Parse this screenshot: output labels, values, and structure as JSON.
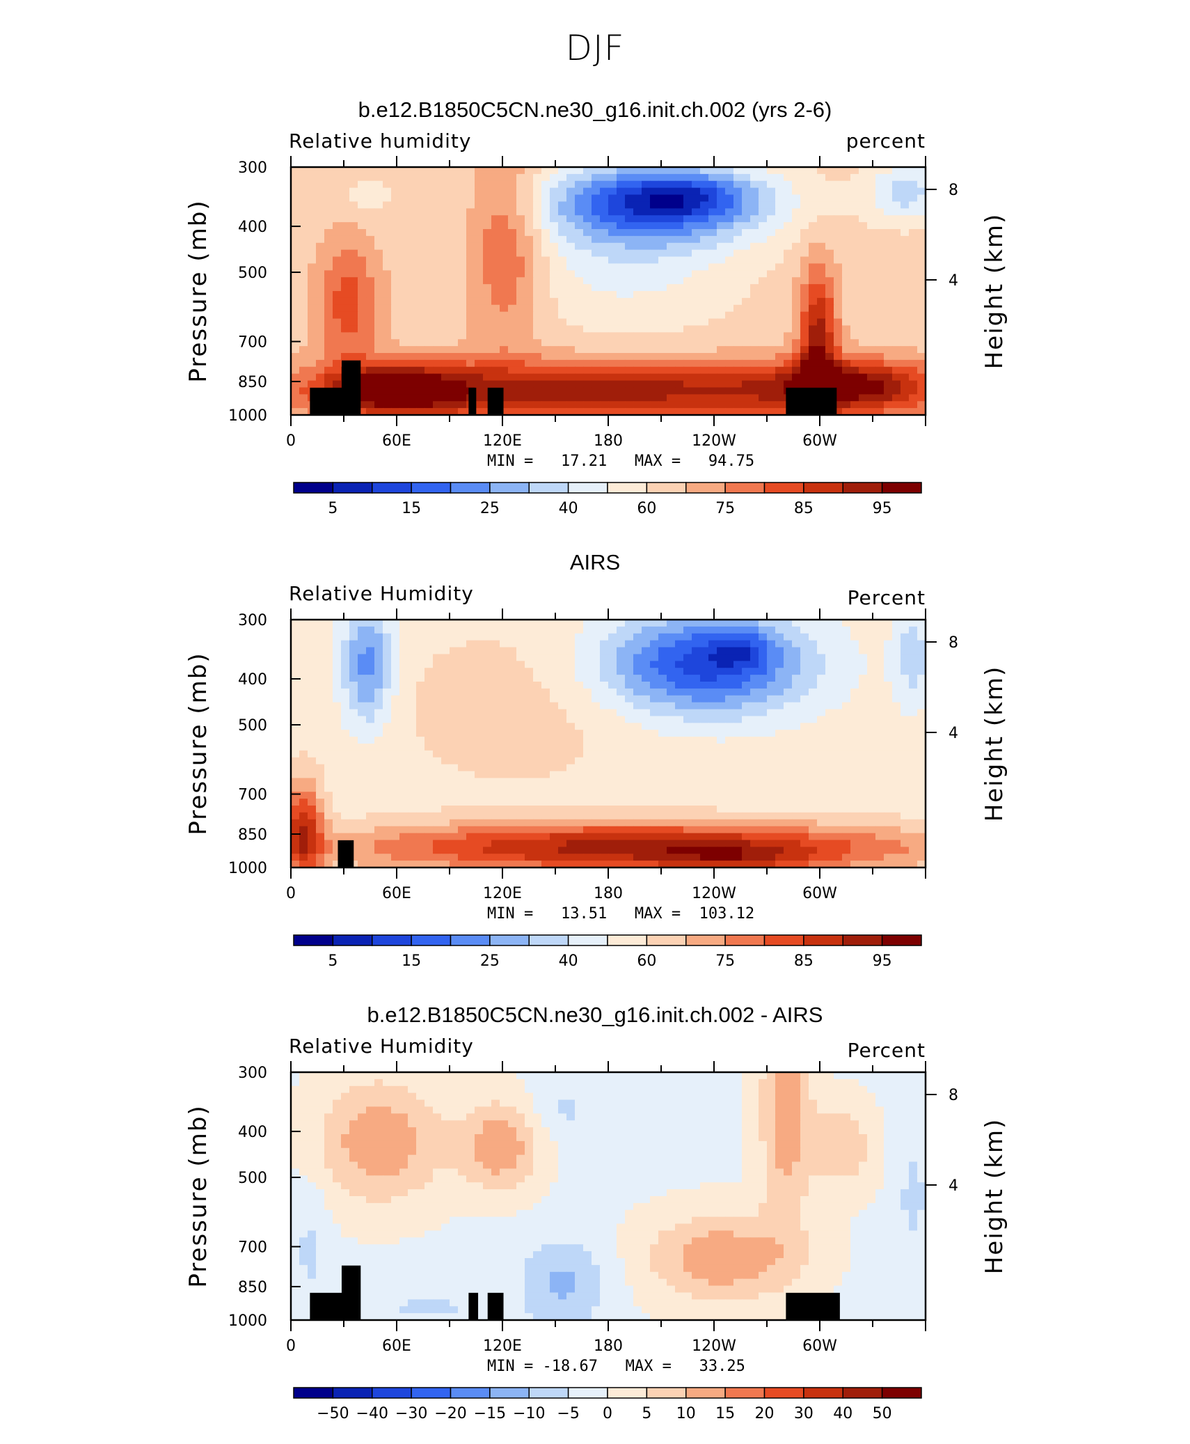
{
  "title": "DJF",
  "panels": [
    {
      "title": "b.e12.B1850C5CN.ne30_g16.init.ch.002 (yrs 2-6)",
      "var_label": "Relative humidity",
      "unit_label": "percent",
      "stats": "MIN =   17.21   MAX =   94.75",
      "colorbar_labels": [
        "5",
        "15",
        "25",
        "40",
        "60",
        "75",
        "85",
        "95"
      ]
    },
    {
      "title": "AIRS",
      "var_label": "Relative Humidity",
      "unit_label": "Percent",
      "stats": "MIN =   13.51   MAX =  103.12",
      "colorbar_labels": [
        "5",
        "15",
        "25",
        "40",
        "60",
        "75",
        "85",
        "95"
      ]
    },
    {
      "title": "b.e12.B1850C5CN.ne30_g16.init.ch.002 - AIRS",
      "var_label": "Relative Humidity",
      "unit_label": "Percent",
      "stats": "MIN = -18.67   MAX =   33.25",
      "colorbar_labels": [
        "-50",
        "-40",
        "-30",
        "-20",
        "-15",
        "-10",
        "-5",
        "0",
        "5",
        "10",
        "15",
        "20",
        "30",
        "40",
        "50"
      ]
    }
  ],
  "chart_data": [
    {
      "type": "heatmap",
      "title": "b.e12.B1850C5CN.ne30_g16.init.ch.002 (yrs 2-6)",
      "xlabel": "",
      "ylabel": "Pressure (mb)",
      "ylabel_right": "Height (km)",
      "x_ticks": [
        "0",
        "60E",
        "120E",
        "180",
        "120W",
        "60W"
      ],
      "y_ticks": [
        "300",
        "400",
        "500",
        "700",
        "850",
        "1000"
      ],
      "y_right_ticks": [
        "8",
        "4"
      ],
      "colorbar": [
        "5",
        "15",
        "25",
        "40",
        "60",
        "75",
        "85",
        "95"
      ],
      "min": 17.21,
      "max": 94.75
    },
    {
      "type": "heatmap",
      "title": "AIRS",
      "xlabel": "",
      "ylabel": "Pressure (mb)",
      "ylabel_right": "Height (km)",
      "x_ticks": [
        "0",
        "60E",
        "120E",
        "180",
        "120W",
        "60W"
      ],
      "y_ticks": [
        "300",
        "400",
        "500",
        "700",
        "850",
        "1000"
      ],
      "y_right_ticks": [
        "8",
        "4"
      ],
      "colorbar": [
        "5",
        "15",
        "25",
        "40",
        "60",
        "75",
        "85",
        "95"
      ],
      "min": 13.51,
      "max": 103.12
    },
    {
      "type": "heatmap",
      "title": "b.e12.B1850C5CN.ne30_g16.init.ch.002 - AIRS",
      "xlabel": "",
      "ylabel": "Pressure (mb)",
      "ylabel_right": "Height (km)",
      "x_ticks": [
        "0",
        "60E",
        "120E",
        "180",
        "120W",
        "60W"
      ],
      "y_ticks": [
        "300",
        "400",
        "500",
        "700",
        "850",
        "1000"
      ],
      "y_right_ticks": [
        "8",
        "4"
      ],
      "colorbar": [
        "-50",
        "-40",
        "-30",
        "-20",
        "-15",
        "-10",
        "-5",
        "0",
        "5",
        "10",
        "15",
        "20",
        "30",
        "40",
        "50"
      ],
      "min": -18.67,
      "max": 33.25
    }
  ],
  "axes": {
    "ylabel": "Pressure (mb)",
    "ylabel_right": "Height (km)",
    "x_ticks": [
      "0",
      "60E",
      "120E",
      "180",
      "120W",
      "60W"
    ],
    "y_ticks": [
      "300",
      "400",
      "500",
      "700",
      "850",
      "1000"
    ],
    "y_right_ticks": [
      "8",
      "4"
    ]
  },
  "colors": {
    "ramp": [
      "#00008b",
      "#0a23b4",
      "#1e46dc",
      "#3264f0",
      "#5a8cf5",
      "#8cb4f5",
      "#bed7f8",
      "#e6f0fa",
      "#fdebd7",
      "#fcd2b4",
      "#f7aa82",
      "#f07850",
      "#e64b23",
      "#c8320f",
      "#a01e0a",
      "#7d0000"
    ]
  }
}
